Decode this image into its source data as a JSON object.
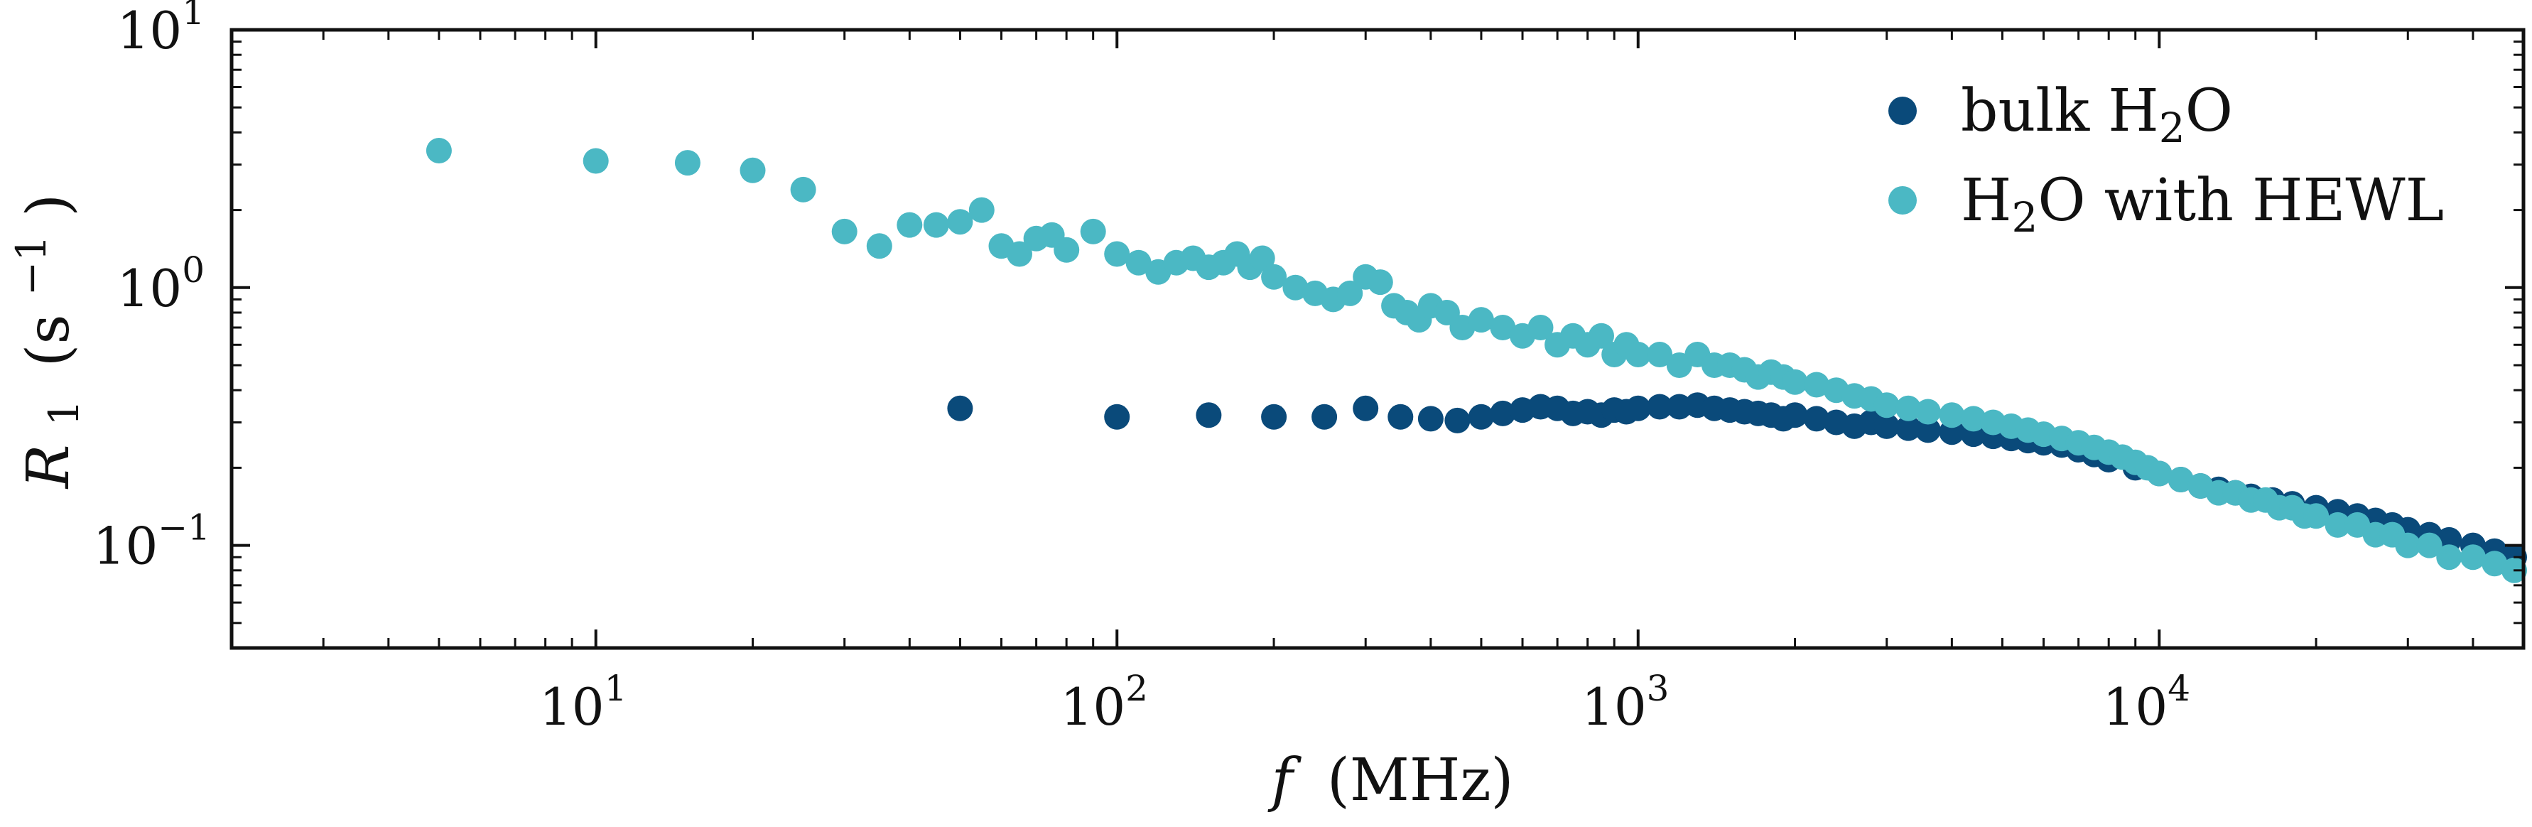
{
  "chart_data": {
    "type": "scatter",
    "title": "",
    "xlabel": {
      "main": "f",
      "unit": "(MHz)"
    },
    "ylabel": {
      "main": "R",
      "sub": "1",
      "unit_open": "(s",
      "unit_exp": "−1",
      "unit_close": ")"
    },
    "xscale": "log",
    "yscale": "log",
    "xlim": [
      2,
      50000
    ],
    "ylim": [
      0.04,
      10
    ],
    "xticks": [
      {
        "value": 10,
        "base": "10",
        "exp": "1"
      },
      {
        "value": 100,
        "base": "10",
        "exp": "2"
      },
      {
        "value": 1000,
        "base": "10",
        "exp": "3"
      },
      {
        "value": 10000,
        "base": "10",
        "exp": "4"
      }
    ],
    "yticks": [
      {
        "value": 0.1,
        "base": "10",
        "exp": "−1"
      },
      {
        "value": 1,
        "base": "10",
        "exp": "0"
      },
      {
        "value": 10,
        "base": "10",
        "exp": "1"
      }
    ],
    "grid": false,
    "legend": "top-right",
    "series": [
      {
        "name": {
          "pre": "bulk H",
          "sub": "2",
          "post": "O"
        },
        "color": "#0a4a7a",
        "x": [
          50,
          100,
          150,
          200,
          250,
          300,
          350,
          400,
          450,
          500,
          550,
          600,
          650,
          700,
          750,
          800,
          850,
          900,
          950,
          1000,
          1100,
          1200,
          1300,
          1400,
          1500,
          1600,
          1700,
          1800,
          1900,
          2000,
          2200,
          2400,
          2600,
          2800,
          3000,
          3300,
          3600,
          4000,
          4400,
          4800,
          5200,
          5600,
          6000,
          6500,
          7000,
          7500,
          8000,
          9000,
          10000,
          11000,
          12000,
          13000,
          14000,
          15000,
          16500,
          18000,
          20000,
          22000,
          24000,
          26000,
          28000,
          30000,
          33000,
          36000,
          40000,
          44000,
          48000
        ],
        "y": [
          0.34,
          0.315,
          0.32,
          0.315,
          0.315,
          0.34,
          0.315,
          0.31,
          0.305,
          0.315,
          0.325,
          0.335,
          0.345,
          0.34,
          0.325,
          0.33,
          0.32,
          0.335,
          0.33,
          0.34,
          0.345,
          0.345,
          0.35,
          0.34,
          0.335,
          0.33,
          0.325,
          0.32,
          0.31,
          0.32,
          0.31,
          0.3,
          0.29,
          0.3,
          0.29,
          0.285,
          0.28,
          0.275,
          0.27,
          0.265,
          0.26,
          0.255,
          0.25,
          0.245,
          0.235,
          0.225,
          0.215,
          0.2,
          0.19,
          0.18,
          0.17,
          0.165,
          0.16,
          0.155,
          0.15,
          0.145,
          0.14,
          0.135,
          0.13,
          0.125,
          0.12,
          0.115,
          0.11,
          0.105,
          0.1,
          0.095,
          0.09
        ]
      },
      {
        "name": {
          "pre": "H",
          "sub": "2",
          "post": "O with HEWL"
        },
        "color": "#4bb8c4",
        "x": [
          5,
          10,
          15,
          20,
          25,
          30,
          35,
          40,
          45,
          50,
          55,
          60,
          65,
          70,
          75,
          80,
          90,
          100,
          110,
          120,
          130,
          140,
          150,
          160,
          170,
          180,
          190,
          200,
          220,
          240,
          260,
          280,
          300,
          320,
          340,
          360,
          380,
          400,
          430,
          460,
          500,
          550,
          600,
          650,
          700,
          750,
          800,
          850,
          900,
          950,
          1000,
          1100,
          1200,
          1300,
          1400,
          1500,
          1600,
          1700,
          1800,
          1900,
          2000,
          2200,
          2400,
          2600,
          2800,
          3000,
          3300,
          3600,
          4000,
          4400,
          4800,
          5200,
          5600,
          6000,
          6500,
          7000,
          7500,
          8000,
          8500,
          9000,
          9500,
          10000,
          11000,
          12000,
          13000,
          14000,
          15000,
          16000,
          17000,
          18000,
          19000,
          20000,
          22000,
          24000,
          26000,
          28000,
          30000,
          33000,
          36000,
          40000,
          44000,
          48000
        ],
        "y": [
          3.4,
          3.1,
          3.05,
          2.85,
          2.4,
          1.65,
          1.45,
          1.75,
          1.75,
          1.8,
          2.0,
          1.45,
          1.35,
          1.55,
          1.6,
          1.4,
          1.65,
          1.35,
          1.25,
          1.15,
          1.25,
          1.3,
          1.2,
          1.25,
          1.35,
          1.2,
          1.3,
          1.1,
          1.0,
          0.95,
          0.9,
          0.95,
          1.1,
          1.05,
          0.85,
          0.8,
          0.75,
          0.85,
          0.8,
          0.7,
          0.75,
          0.7,
          0.65,
          0.7,
          0.6,
          0.65,
          0.6,
          0.65,
          0.55,
          0.6,
          0.55,
          0.55,
          0.5,
          0.55,
          0.5,
          0.5,
          0.48,
          0.45,
          0.47,
          0.45,
          0.43,
          0.42,
          0.4,
          0.38,
          0.37,
          0.35,
          0.34,
          0.33,
          0.32,
          0.31,
          0.3,
          0.29,
          0.28,
          0.27,
          0.26,
          0.25,
          0.24,
          0.23,
          0.22,
          0.21,
          0.2,
          0.19,
          0.18,
          0.17,
          0.16,
          0.16,
          0.15,
          0.15,
          0.14,
          0.14,
          0.13,
          0.13,
          0.12,
          0.12,
          0.11,
          0.11,
          0.1,
          0.1,
          0.09,
          0.09,
          0.085,
          0.08
        ]
      }
    ]
  }
}
